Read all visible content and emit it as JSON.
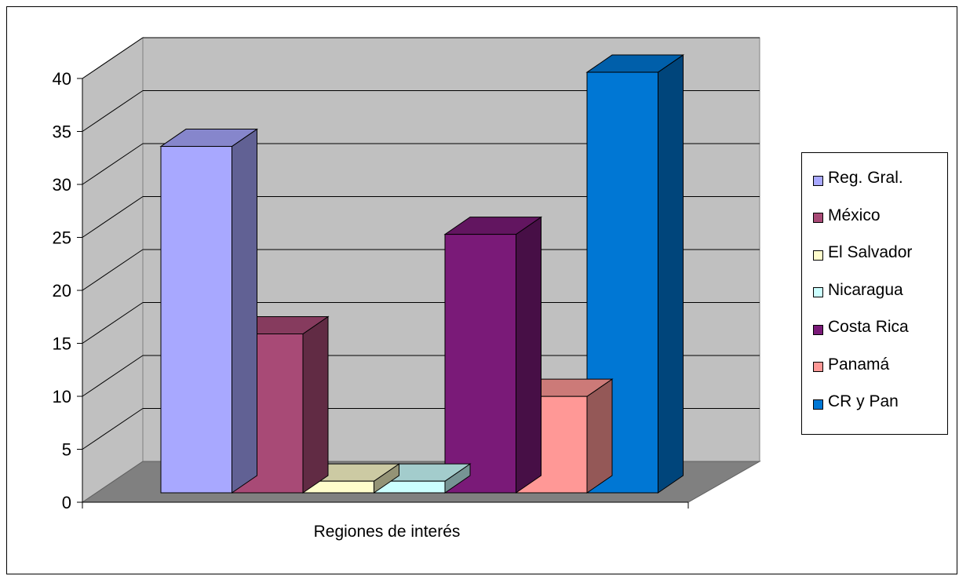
{
  "chart_data": {
    "type": "bar",
    "title": "",
    "xlabel": "Regiones de interés",
    "ylabel": "",
    "ylim": [
      0,
      40
    ],
    "yticks": [
      "0",
      "5",
      "10",
      "15",
      "20",
      "25",
      "30",
      "35",
      "40"
    ],
    "grid": true,
    "legend_position": "right",
    "series": [
      {
        "name": "Reg. Gral.",
        "value": 32.7,
        "color": "#a8a8ff"
      },
      {
        "name": "México",
        "value": 15.0,
        "color": "#a84a76"
      },
      {
        "name": "El Salvador",
        "value": 1.1,
        "color": "#fffdcc"
      },
      {
        "name": "Nicaragua",
        "value": 1.1,
        "color": "#ccffff"
      },
      {
        "name": "Costa Rica",
        "value": 24.4,
        "color": "#7a1a78"
      },
      {
        "name": "Panamá",
        "value": 9.1,
        "color": "#ff9896"
      },
      {
        "name": "CR y Pan",
        "value": 39.7,
        "color": "#0077d4"
      }
    ]
  }
}
